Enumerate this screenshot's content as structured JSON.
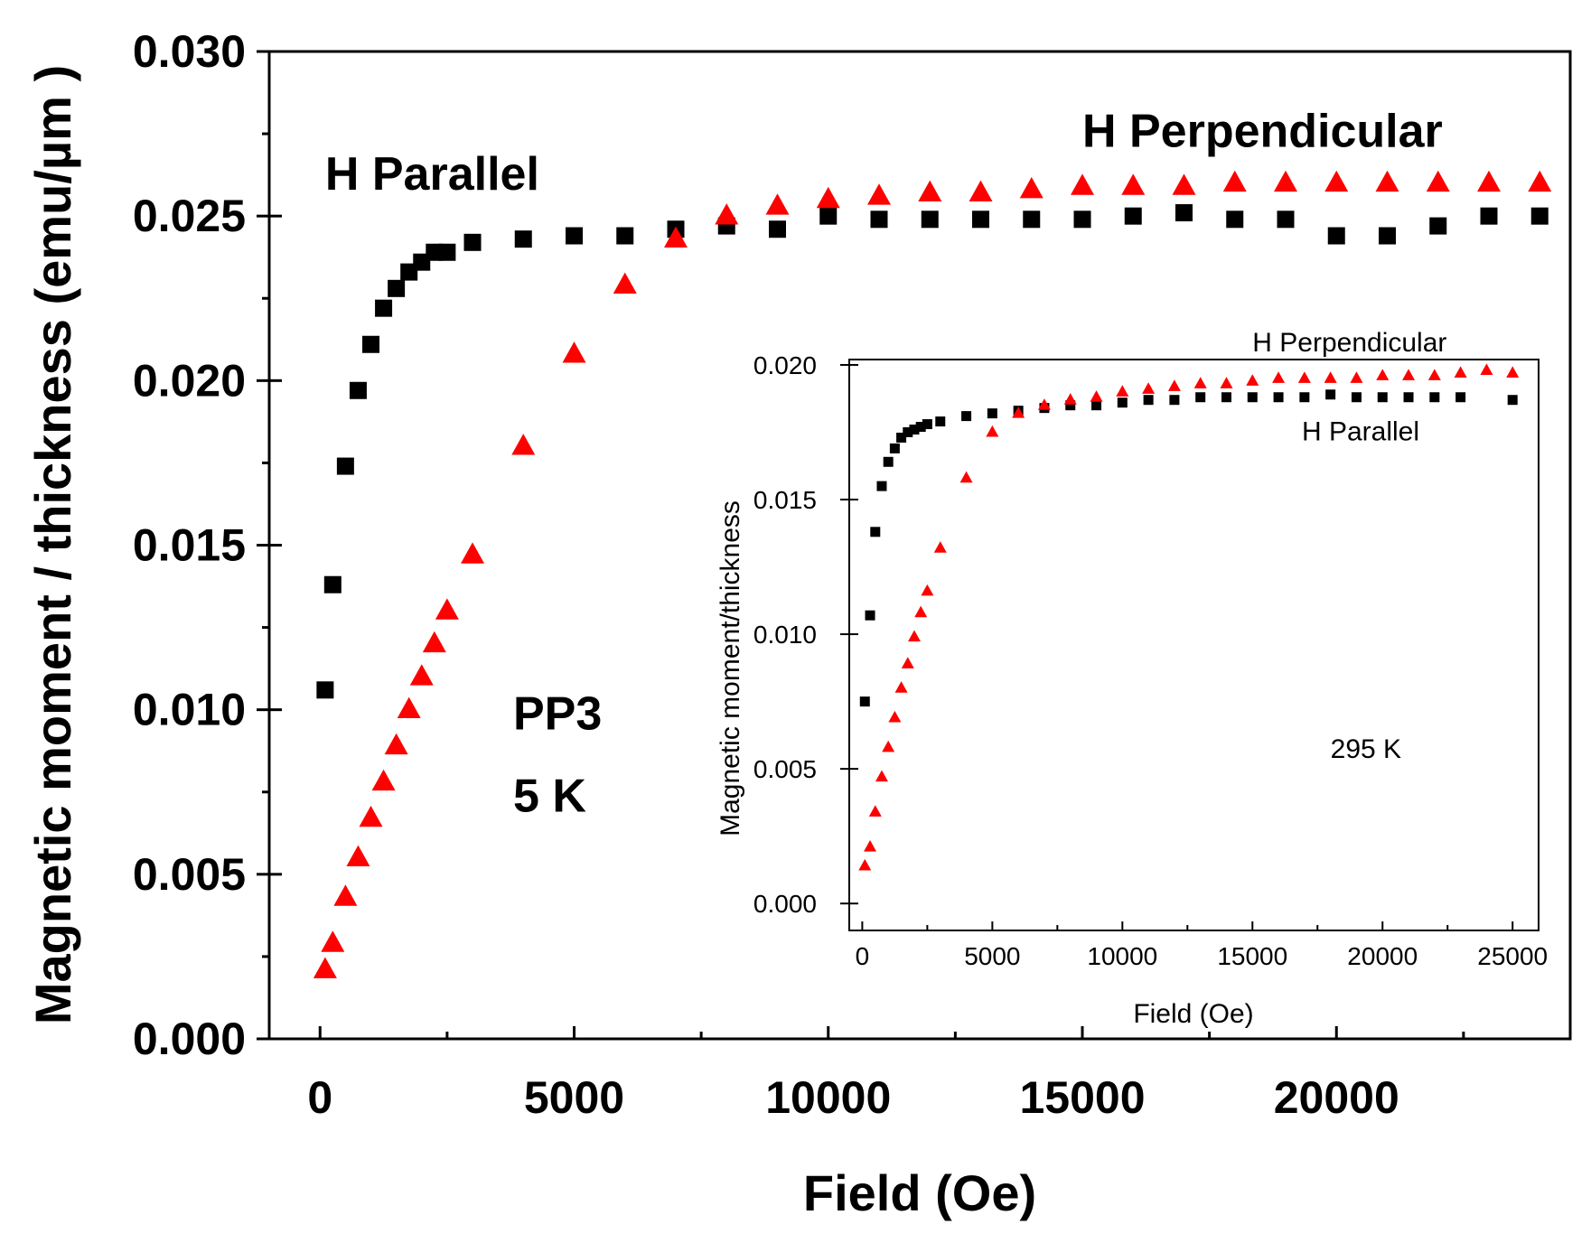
{
  "chart_data": [
    {
      "id": "main",
      "type": "scatter",
      "title": "",
      "xlabel": "Field (Oe)",
      "ylabel": "Magnetic moment / thickness (emu/µm )",
      "xlim": [
        -1000,
        24600
      ],
      "ylim": [
        0,
        0.03
      ],
      "xticks": [
        0,
        5000,
        10000,
        15000,
        20000
      ],
      "yticks": [
        0.0,
        0.005,
        0.01,
        0.015,
        0.02,
        0.025,
        0.03
      ],
      "xtick_labels": [
        "0",
        "5000",
        "10000",
        "15000",
        "20000"
      ],
      "ytick_labels": [
        "0.000",
        "0.005",
        "0.010",
        "0.015",
        "0.020",
        "0.025",
        "0.030"
      ],
      "series": [
        {
          "name": "H Parallel",
          "marker": "square",
          "color": "#000000",
          "x": [
            100,
            250,
            500,
            750,
            1000,
            1250,
            1500,
            1750,
            2000,
            2250,
            2500,
            3000,
            4000,
            5000,
            6000,
            7000,
            8000,
            9000,
            10000,
            11000,
            12000,
            13000,
            14000,
            15000,
            16000,
            17000,
            18000,
            19000,
            20000,
            21000,
            22000,
            23000,
            24000
          ],
          "y": [
            0.0106,
            0.0138,
            0.0174,
            0.0197,
            0.0211,
            0.0222,
            0.0228,
            0.0233,
            0.0236,
            0.0239,
            0.0239,
            0.0242,
            0.0243,
            0.0244,
            0.0244,
            0.0246,
            0.0247,
            0.0246,
            0.025,
            0.0249,
            0.0249,
            0.0249,
            0.0249,
            0.0249,
            0.025,
            0.0251,
            0.0249,
            0.0249,
            0.0244,
            0.0244,
            0.0247,
            0.025,
            0.025
          ]
        },
        {
          "name": "H Perpendicular",
          "marker": "triangle",
          "color": "#ff0000",
          "x": [
            100,
            250,
            500,
            750,
            1000,
            1250,
            1500,
            1750,
            2000,
            2250,
            2500,
            3000,
            4000,
            5000,
            6000,
            7000,
            8000,
            9000,
            10000,
            11000,
            12000,
            13000,
            14000,
            15000,
            16000,
            17000,
            18000,
            19000,
            20000,
            21000,
            22000,
            23000,
            24000
          ],
          "y": [
            0.0021,
            0.0029,
            0.0043,
            0.0055,
            0.0067,
            0.0078,
            0.0089,
            0.01,
            0.011,
            0.012,
            0.013,
            0.0147,
            0.018,
            0.0208,
            0.0229,
            0.0243,
            0.025,
            0.0253,
            0.0255,
            0.0256,
            0.0257,
            0.0257,
            0.0258,
            0.0259,
            0.0259,
            0.0259,
            0.026,
            0.026,
            0.026,
            0.026,
            0.026,
            0.026,
            0.026
          ]
        }
      ],
      "annotations": [
        {
          "text": "H Parallel",
          "x": 100,
          "y": 0.0258
        },
        {
          "text": "H Perpendicular",
          "x": 15000,
          "y": 0.0271
        },
        {
          "text": "PP3",
          "x": 3800,
          "y": 0.0094
        },
        {
          "text": "5 K",
          "x": 3800,
          "y": 0.0069
        }
      ]
    },
    {
      "id": "inset",
      "type": "scatter",
      "title": "",
      "xlabel": "Field (Oe)",
      "ylabel": "Magnetic moment/thickness",
      "xlim": [
        -500,
        26000
      ],
      "ylim": [
        -0.001,
        0.0202
      ],
      "xticks": [
        0,
        5000,
        10000,
        15000,
        20000,
        25000
      ],
      "yticks": [
        0.0,
        0.005,
        0.01,
        0.015,
        0.02
      ],
      "xtick_labels": [
        "0",
        "5000",
        "10000",
        "15000",
        "20000",
        "25000"
      ],
      "ytick_labels": [
        "0.000",
        "0.005",
        "0.010",
        "0.015",
        "0.020"
      ],
      "series": [
        {
          "name": "H Parallel",
          "marker": "square",
          "color": "#000000",
          "x": [
            100,
            300,
            500,
            750,
            1000,
            1250,
            1500,
            1750,
            2000,
            2250,
            2500,
            3000,
            4000,
            5000,
            6000,
            7000,
            8000,
            9000,
            10000,
            11000,
            12000,
            13000,
            14000,
            15000,
            16000,
            17000,
            18000,
            19000,
            20000,
            21000,
            22000,
            23000,
            25000
          ],
          "y": [
            0.0075,
            0.0107,
            0.0138,
            0.0155,
            0.0164,
            0.0169,
            0.0173,
            0.0175,
            0.0176,
            0.0177,
            0.0178,
            0.0179,
            0.0181,
            0.0182,
            0.0183,
            0.0184,
            0.0185,
            0.0185,
            0.0186,
            0.0187,
            0.0187,
            0.0188,
            0.0188,
            0.0188,
            0.0188,
            0.0188,
            0.0189,
            0.0188,
            0.0188,
            0.0188,
            0.0188,
            0.0188,
            0.0187
          ]
        },
        {
          "name": "H Perpendicular",
          "marker": "triangle",
          "color": "#ff0000",
          "x": [
            100,
            300,
            500,
            750,
            1000,
            1250,
            1500,
            1750,
            2000,
            2250,
            2500,
            3000,
            4000,
            5000,
            6000,
            7000,
            8000,
            9000,
            10000,
            11000,
            12000,
            13000,
            14000,
            15000,
            16000,
            17000,
            18000,
            19000,
            20000,
            21000,
            22000,
            23000,
            24000,
            25000
          ],
          "y": [
            0.0014,
            0.0021,
            0.0034,
            0.0047,
            0.0058,
            0.0069,
            0.008,
            0.0089,
            0.0099,
            0.0108,
            0.0116,
            0.0132,
            0.0158,
            0.0175,
            0.0182,
            0.0185,
            0.0187,
            0.0188,
            0.019,
            0.0191,
            0.0192,
            0.0193,
            0.0193,
            0.0194,
            0.0195,
            0.0195,
            0.0195,
            0.0195,
            0.0196,
            0.0196,
            0.0196,
            0.0197,
            0.0198,
            0.0197
          ]
        }
      ],
      "annotations": [
        {
          "text": "H Perpendicular",
          "x": 15000,
          "y": 0.0205
        },
        {
          "text": "H Parallel",
          "x": 16900,
          "y": 0.0172
        },
        {
          "text": "295 K",
          "x": 18000,
          "y": 0.0054
        }
      ]
    }
  ]
}
